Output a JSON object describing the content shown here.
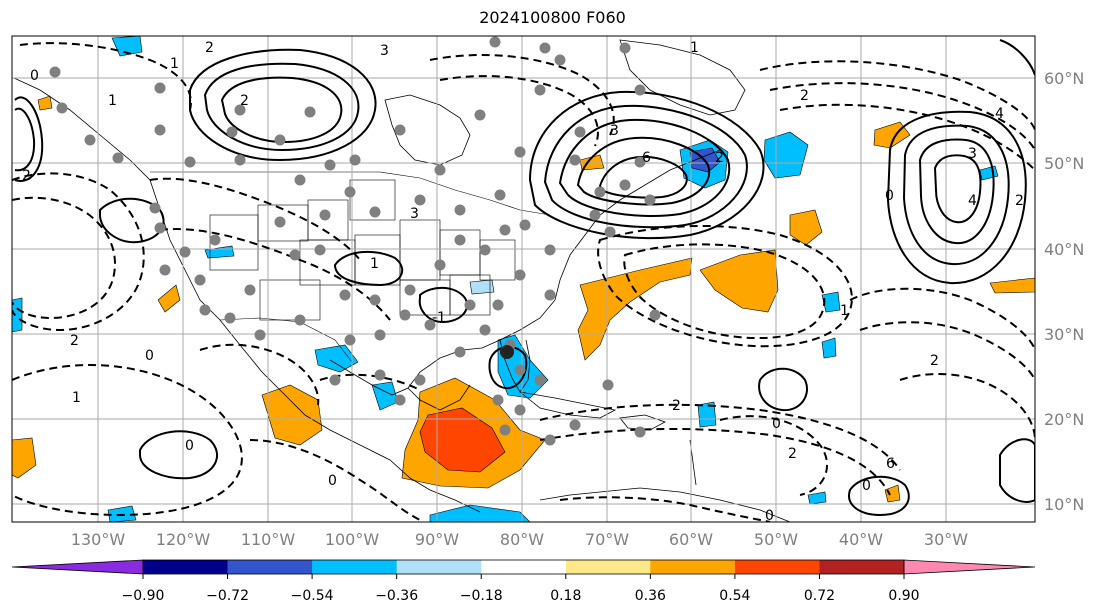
{
  "title": "2024100800 F060",
  "lat_labels": [
    "60°N",
    "50°N",
    "40°N",
    "30°N",
    "20°N",
    "10°N"
  ],
  "lon_labels": [
    "130°W",
    "120°W",
    "110°W",
    "100°W",
    "90°W",
    "80°W",
    "70°W",
    "60°W",
    "50°W",
    "40°W",
    "30°W"
  ],
  "colorbar": {
    "colors": [
      "#8a2be2",
      "#00008b",
      "#3355cc",
      "#00bfff",
      "#b0e0f8",
      "#ffffff",
      "#ffe88a",
      "#ffa500",
      "#ff4500",
      "#b22222",
      "#ff88b0"
    ],
    "tick_labels": [
      "−0.90",
      "−0.72",
      "−0.54",
      "−0.36",
      "−0.18",
      "0.18",
      "0.36",
      "0.54",
      "0.72",
      "0.90"
    ]
  },
  "contour_labels": [
    "2",
    "2",
    "1",
    "0",
    "2",
    "3",
    "2",
    "0",
    "1",
    "3",
    "3",
    "6",
    "2",
    "4",
    "3",
    "4",
    "2",
    "1",
    "0",
    "1",
    "2",
    "2",
    "0",
    "2",
    "0",
    "0",
    "6",
    "2",
    "0",
    "0",
    "1",
    "1",
    "-1"
  ],
  "shading_colors": {
    "orange": "#ffa500",
    "red": "#ff4500",
    "blue": "#00bfff",
    "light_blue": "#b0e0f8",
    "mid_blue": "#3355cc"
  }
}
